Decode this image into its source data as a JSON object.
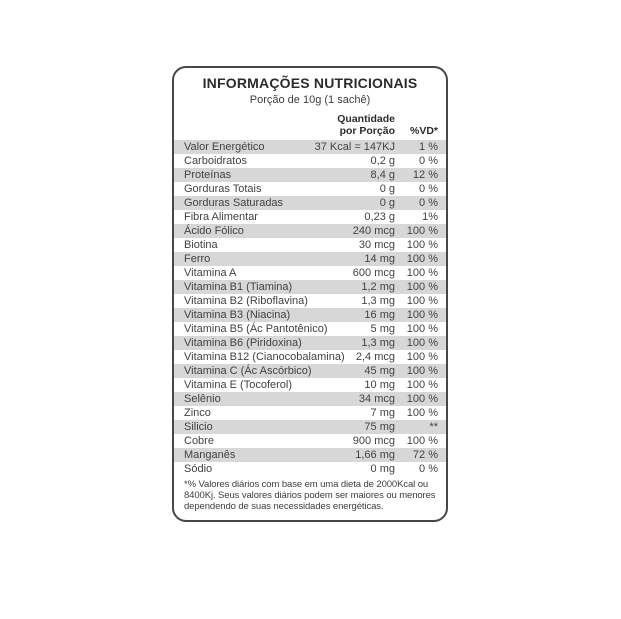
{
  "label": {
    "title": "INFORMAÇÕES NUTRICIONAIS",
    "serving": "Porção de 10g (1 sachê)",
    "columns": {
      "quantity_line1": "Quantidade",
      "quantity_line2": "por Porção",
      "dv": "%VD*"
    },
    "rows": [
      {
        "name": "Valor Energético",
        "qty": "37 Kcal = 147KJ",
        "dv": "1 %"
      },
      {
        "name": "Carboidratos",
        "qty": "0,2 g",
        "dv": "0 %"
      },
      {
        "name": "Proteínas",
        "qty": "8,4 g",
        "dv": "12 %"
      },
      {
        "name": "Gorduras Totais",
        "qty": "0 g",
        "dv": "0 %"
      },
      {
        "name": "Gorduras Saturadas",
        "qty": "0 g",
        "dv": "0 %"
      },
      {
        "name": "Fibra Alimentar",
        "qty": "0,23 g",
        "dv": "1%"
      },
      {
        "name": "Ácido Fólico",
        "qty": "240 mcg",
        "dv": "100 %"
      },
      {
        "name": "Biotina",
        "qty": "30 mcg",
        "dv": "100 %"
      },
      {
        "name": "Ferro",
        "qty": "14 mg",
        "dv": "100 %"
      },
      {
        "name": "Vitamina A",
        "qty": "600 mcg",
        "dv": "100 %"
      },
      {
        "name": "Vitamina B1 (Tiamina)",
        "qty": "1,2 mg",
        "dv": "100 %"
      },
      {
        "name": "Vitamina B2 (Riboflavina)",
        "qty": "1,3 mg",
        "dv": "100 %"
      },
      {
        "name": "Vitamina B3 (Niacina)",
        "qty": "16 mg",
        "dv": "100 %"
      },
      {
        "name": "Vitamina B5 (Ác Pantotênico)",
        "qty": "5 mg",
        "dv": "100 %"
      },
      {
        "name": "Vitamina B6 (Piridoxina)",
        "qty": "1,3 mg",
        "dv": "100 %"
      },
      {
        "name": "Vitamina B12 (Cianocobalamina)",
        "qty": "2,4 mcg",
        "dv": "100 %"
      },
      {
        "name": "Vitamina C (Ác Ascórbico)",
        "qty": "45 mg",
        "dv": "100 %"
      },
      {
        "name": "Vitamina E (Tocoferol)",
        "qty": "10 mg",
        "dv": "100 %"
      },
      {
        "name": "Selênio",
        "qty": "34 mcg",
        "dv": "100 %"
      },
      {
        "name": "Zinco",
        "qty": "7 mg",
        "dv": "100 %"
      },
      {
        "name": "Silicio",
        "qty": "75 mg",
        "dv": "**"
      },
      {
        "name": "Cobre",
        "qty": "900 mcg",
        "dv": "100 %"
      },
      {
        "name": "Manganês",
        "qty": "1,66 mg",
        "dv": "72 %"
      },
      {
        "name": "Sódio",
        "qty": "0 mg",
        "dv": "0 %"
      }
    ],
    "footnote_lines": [
      "*% Valores diários com base em uma dieta de 2000Kcal ou",
      "8400Kj. Seus valores diários podem ser maiores ou  menores",
      "dependendo de suas necessidades energéticas."
    ],
    "colors": {
      "border": "#474747",
      "row_shade": "#d7d7d7",
      "text": "#424242"
    }
  }
}
